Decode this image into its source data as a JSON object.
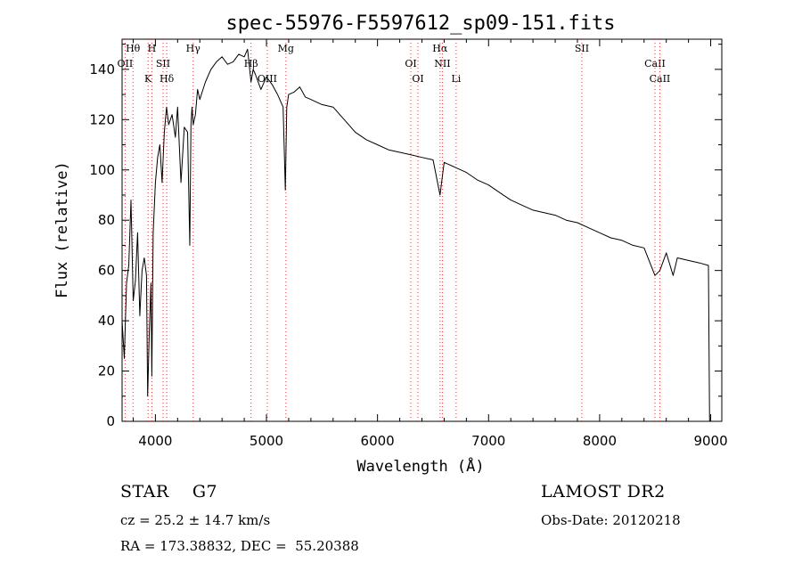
{
  "chart_data": {
    "type": "line",
    "title": "spec-55976-F5597612_sp09-151.fits",
    "xlabel": "Wavelength (Å)",
    "ylabel": "Flux (relative)",
    "xlim": [
      3700,
      9100
    ],
    "ylim": [
      0,
      152
    ],
    "xticks": [
      4000,
      5000,
      6000,
      7000,
      8000,
      9000
    ],
    "yticks": [
      0,
      20,
      40,
      60,
      80,
      100,
      120,
      140
    ],
    "grid": false,
    "series": [
      {
        "x": [
          3700,
          3720,
          3740,
          3760,
          3780,
          3800,
          3820,
          3840,
          3860,
          3880,
          3900,
          3920,
          3930,
          3945,
          3960,
          3968,
          3980,
          4000,
          4020,
          4040,
          4060,
          4080,
          4100,
          4120,
          4150,
          4180,
          4200,
          4230,
          4260,
          4290,
          4310,
          4320,
          4330,
          4340,
          4360,
          4380,
          4400,
          4450,
          4500,
          4550,
          4600,
          4650,
          4700,
          4750,
          4800,
          4830,
          4861,
          4880,
          4900,
          4950,
          5000,
          5050,
          5100,
          5150,
          5170,
          5183,
          5200,
          5250,
          5300,
          5350,
          5400,
          5500,
          5600,
          5700,
          5800,
          5900,
          6000,
          6100,
          6200,
          6300,
          6400,
          6500,
          6563,
          6600,
          6700,
          6800,
          6900,
          7000,
          7100,
          7200,
          7300,
          7400,
          7500,
          7600,
          7700,
          7800,
          7900,
          8000,
          8100,
          8200,
          8300,
          8400,
          8498,
          8542,
          8600,
          8662,
          8700,
          8800,
          8900,
          8980,
          8990,
          9000
        ],
        "y": [
          40,
          25,
          55,
          62,
          88,
          48,
          56,
          75,
          42,
          60,
          65,
          58,
          10,
          35,
          55,
          18,
          75,
          95,
          105,
          110,
          95,
          115,
          125,
          118,
          122,
          113,
          125,
          95,
          117,
          115,
          70,
          118,
          125,
          118,
          122,
          132,
          128,
          135,
          140,
          143,
          145,
          142,
          143,
          146,
          145,
          148,
          135,
          140,
          138,
          132,
          137,
          134,
          130,
          125,
          92,
          125,
          130,
          131,
          133,
          129,
          128,
          126,
          125,
          120,
          115,
          112,
          110,
          108,
          107,
          106,
          105,
          104,
          90,
          103,
          101,
          99,
          96,
          94,
          91,
          88,
          86,
          84,
          83,
          82,
          80,
          79,
          77,
          75,
          73,
          72,
          70,
          69,
          58,
          60,
          67,
          58,
          65,
          64,
          63,
          62,
          0,
          0
        ]
      }
    ],
    "line_marks": [
      {
        "name": "Hθ",
        "x": 3798
      },
      {
        "name": "OII",
        "x": 3727
      },
      {
        "name": "K",
        "x": 3934
      },
      {
        "name": "H",
        "x": 3968
      },
      {
        "name": "SII",
        "x": 4069
      },
      {
        "name": "Hδ",
        "x": 4102
      },
      {
        "name": "Hγ",
        "x": 4340
      },
      {
        "name": "Hβ",
        "x": 4861
      },
      {
        "name": "OIII",
        "x": 5007
      },
      {
        "name": "Mg",
        "x": 5175
      },
      {
        "name": "OI",
        "x": 6300
      },
      {
        "name": "OI",
        "x": 6364
      },
      {
        "name": "Hα",
        "x": 6563
      },
      {
        "name": "NII",
        "x": 6584
      },
      {
        "name": "Li",
        "x": 6708
      },
      {
        "name": "SII",
        "x": 7840
      },
      {
        "name": "CaII",
        "x": 8498
      },
      {
        "name": "CaII",
        "x": 8542
      }
    ]
  },
  "info": {
    "object": "STAR    G7",
    "velocity": "cz = 25.2 ± 14.7 km/s",
    "coords": "RA = 173.38832, DEC =  55.20388",
    "survey": "LAMOST DR2",
    "obs_date": "Obs-Date: 20120218"
  }
}
